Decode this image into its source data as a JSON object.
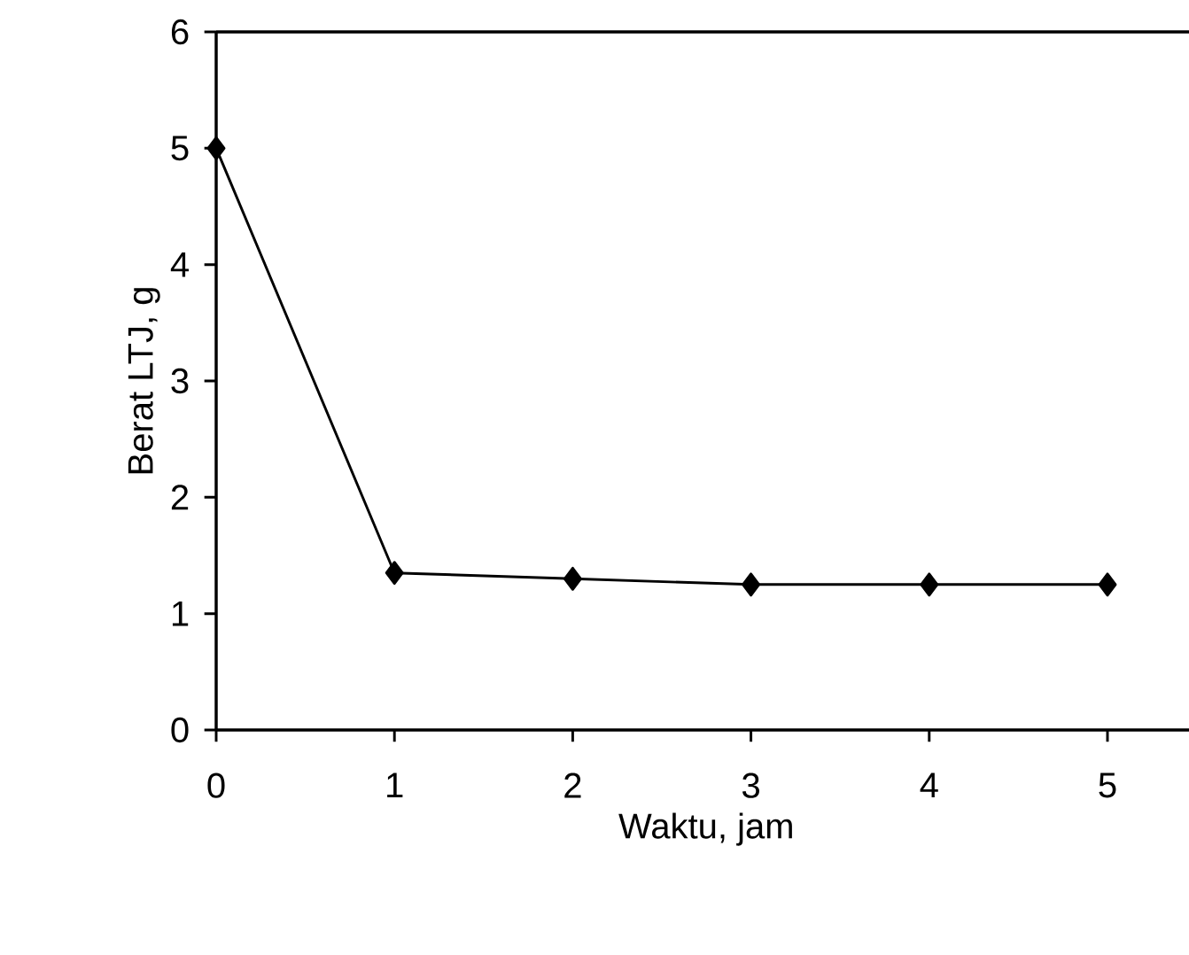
{
  "chart_data": {
    "type": "line",
    "xlabel": "Waktu, jam",
    "ylabel": "Berat LTJ, g",
    "x": [
      0,
      1,
      2,
      3,
      4,
      5
    ],
    "series": [
      {
        "color": "#000000",
        "values": [
          5,
          1.35,
          1.3,
          1.25,
          1.25,
          1.25
        ]
      }
    ],
    "xlim": [
      0,
      5.5
    ],
    "xticks": [
      0,
      1,
      2,
      3,
      4,
      5
    ],
    "ylim": [
      0,
      6
    ],
    "yticks": [
      0,
      1,
      2,
      3,
      4,
      5,
      6
    ],
    "marker": "diamond",
    "line_style": "solid",
    "grid": false
  }
}
